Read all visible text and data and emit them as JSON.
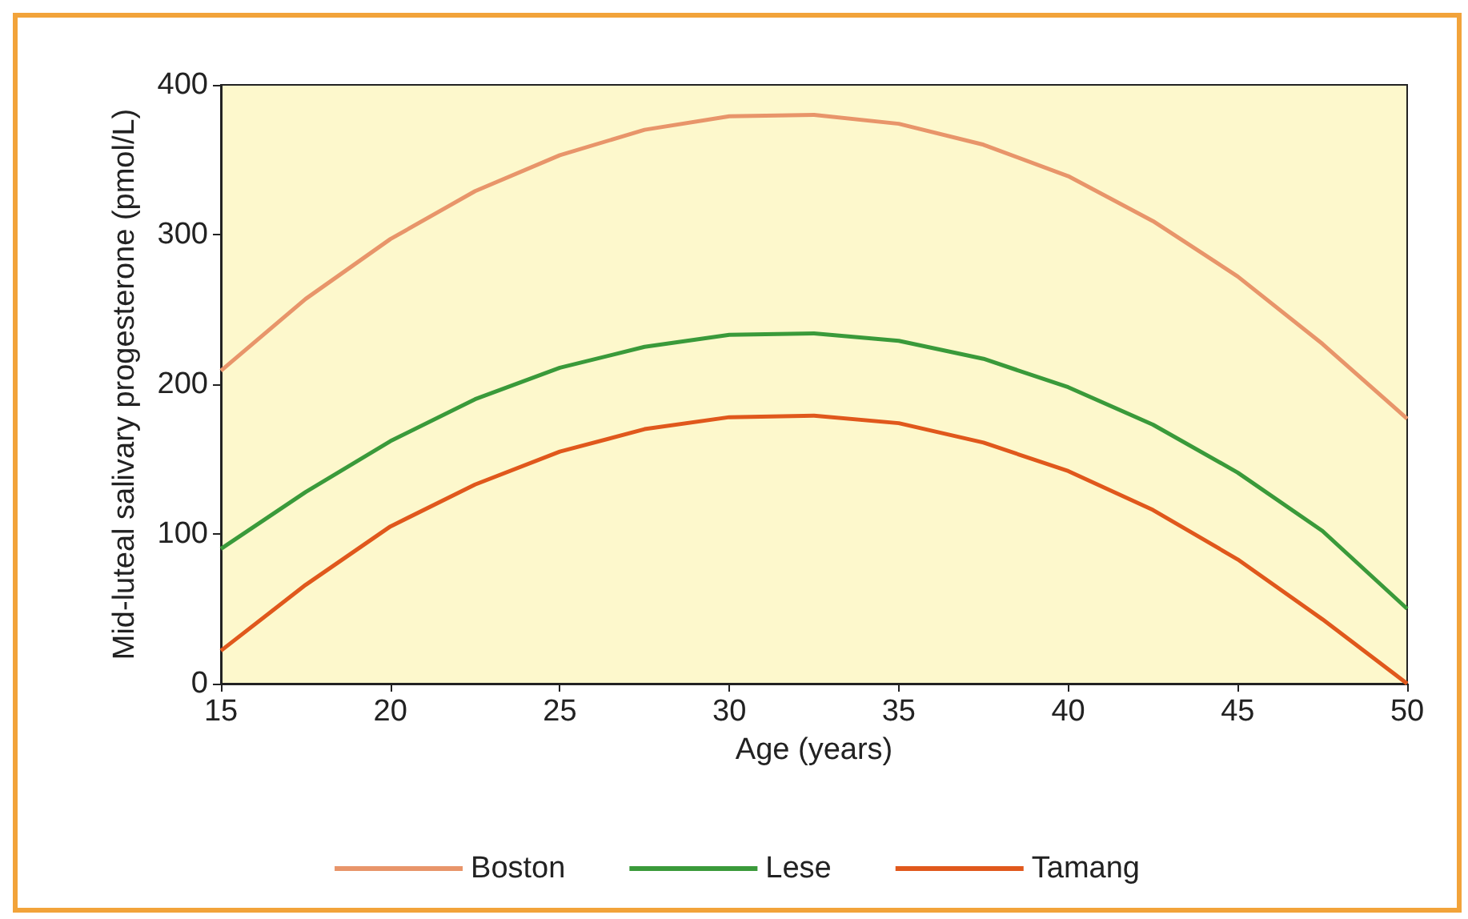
{
  "chart_data": {
    "type": "line",
    "xlabel": "Age (years)",
    "ylabel": "Mid-luteal salivary progesterone (pmol/L)",
    "x": [
      15,
      17.5,
      20,
      22.5,
      25,
      27.5,
      30,
      32.5,
      35,
      37.5,
      40,
      42.5,
      45,
      47.5,
      50
    ],
    "series": [
      {
        "name": "Boston",
        "color": "#e8956a",
        "values": [
          209,
          257,
          297,
          329,
          353,
          370,
          379,
          380,
          374,
          360,
          339,
          309,
          272,
          227,
          177
        ]
      },
      {
        "name": "Lese",
        "color": "#3a9a3a",
        "values": [
          90,
          128,
          162,
          190,
          211,
          225,
          233,
          234,
          229,
          217,
          198,
          173,
          141,
          102,
          50
        ]
      },
      {
        "name": "Tamang",
        "color": "#e0581c",
        "values": [
          22,
          66,
          105,
          133,
          155,
          170,
          178,
          179,
          174,
          161,
          142,
          116,
          83,
          43,
          0
        ]
      }
    ],
    "xlim": [
      15,
      50
    ],
    "xticks": [
      15,
      20,
      25,
      30,
      35,
      40,
      45,
      50
    ],
    "ylim": [
      0,
      400
    ],
    "yticks": [
      0,
      100,
      200,
      300,
      400
    ],
    "grid": false,
    "legend": "bottom",
    "marker": "none",
    "line_style": "solid"
  }
}
